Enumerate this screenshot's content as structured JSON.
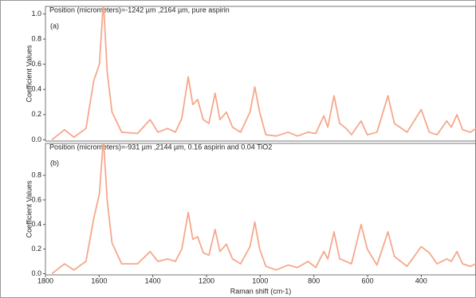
{
  "chart_data": [
    {
      "type": "line",
      "title": "Position (micrometers)=-1242 µm ,2164 µm, pure aspirin",
      "panel_label": "(a)",
      "ylabel": "Coefficient Values",
      "x": [
        1776,
        1729,
        1694,
        1649,
        1620,
        1599,
        1584,
        1570,
        1552,
        1516,
        1457,
        1410,
        1381,
        1345,
        1316,
        1292,
        1268,
        1251,
        1233,
        1212,
        1191,
        1168,
        1150,
        1126,
        1103,
        1073,
        1038,
        1020,
        1002,
        979,
        940,
        896,
        861,
        822,
        793,
        763,
        748,
        725,
        704,
        680,
        660,
        624,
        601,
        565,
        524,
        500,
        453,
        400,
        370,
        341,
        305,
        288,
        267,
        246,
        217,
        196
      ],
      "series": [
        {
          "name": "pure aspirin",
          "color": "#f5a88c",
          "values": [
            0.0,
            0.08,
            0.02,
            0.09,
            0.47,
            0.6,
            1.1,
            0.54,
            0.22,
            0.06,
            0.05,
            0.16,
            0.06,
            0.09,
            0.06,
            0.17,
            0.5,
            0.28,
            0.32,
            0.16,
            0.13,
            0.37,
            0.16,
            0.22,
            0.1,
            0.06,
            0.22,
            0.42,
            0.22,
            0.04,
            0.03,
            0.06,
            0.03,
            0.06,
            0.05,
            0.19,
            0.1,
            0.35,
            0.13,
            0.09,
            0.04,
            0.15,
            0.04,
            0.06,
            0.35,
            0.13,
            0.06,
            0.24,
            0.06,
            0.04,
            0.15,
            0.1,
            0.2,
            0.08,
            0.06,
            0.09
          ]
        }
      ],
      "xlim": [
        1800,
        196
      ],
      "ylim": [
        -0.01,
        1.06
      ],
      "yticks": [
        {
          "value": 0,
          "label": "0.0"
        },
        0.2,
        0.4,
        0.6,
        0.8,
        {
          "value": 1,
          "label": "1.0"
        }
      ]
    },
    {
      "type": "line",
      "title": "Position (micrometers)=-931 µm ,2144 µm, 0.16 aspirin and 0.04 TiO2",
      "panel_label": "(b)",
      "ylabel": "Coefficient Values",
      "xlabel": "Raman shift (cm-1)",
      "x": [
        1776,
        1729,
        1694,
        1649,
        1620,
        1599,
        1584,
        1570,
        1552,
        1516,
        1457,
        1410,
        1381,
        1345,
        1316,
        1292,
        1268,
        1251,
        1233,
        1212,
        1191,
        1168,
        1150,
        1126,
        1103,
        1073,
        1038,
        1020,
        1002,
        979,
        940,
        896,
        861,
        822,
        793,
        763,
        748,
        725,
        704,
        680,
        660,
        624,
        601,
        565,
        524,
        500,
        453,
        400,
        370,
        341,
        305,
        288,
        267,
        246,
        217,
        196
      ],
      "series": [
        {
          "name": "0.16 aspirin and 0.04 TiO2",
          "color": "#f5a88c",
          "values": [
            0.0,
            0.08,
            0.03,
            0.1,
            0.45,
            0.65,
            1.1,
            0.6,
            0.25,
            0.08,
            0.08,
            0.18,
            0.1,
            0.12,
            0.1,
            0.2,
            0.5,
            0.28,
            0.3,
            0.17,
            0.15,
            0.36,
            0.18,
            0.24,
            0.12,
            0.08,
            0.22,
            0.42,
            0.2,
            0.06,
            0.03,
            0.07,
            0.05,
            0.1,
            0.05,
            0.18,
            0.12,
            0.34,
            0.12,
            0.1,
            0.08,
            0.4,
            0.2,
            0.07,
            0.34,
            0.14,
            0.06,
            0.22,
            0.17,
            0.08,
            0.12,
            0.1,
            0.18,
            0.08,
            0.06,
            0.08
          ]
        }
      ],
      "xlim": [
        1800,
        196
      ],
      "ylim": [
        -0.01,
        1.06
      ],
      "xticks": [
        1800,
        1600,
        1400,
        1200,
        1000,
        800,
        600,
        400
      ],
      "yticks": [
        {
          "value": 0,
          "label": "0.0"
        },
        0.2,
        0.4,
        0.6,
        0.8
      ]
    }
  ]
}
